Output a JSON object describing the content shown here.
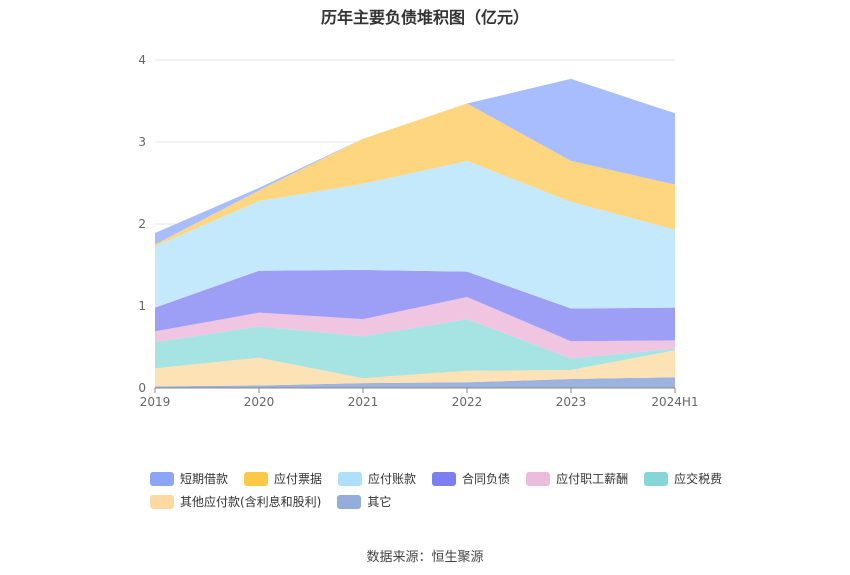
{
  "chart_data": {
    "type": "area",
    "stacked": true,
    "title": "历年主要负债堆积图（亿元）",
    "categories": [
      "2019",
      "2020",
      "2021",
      "2022",
      "2023",
      "2024H1"
    ],
    "ylim": [
      0,
      4
    ],
    "yticks": [
      "0",
      "1",
      "2",
      "3",
      "4"
    ],
    "grid": true,
    "legend_position": "bottom",
    "series": [
      {
        "name": "其它",
        "color": "#9bb3de",
        "values": [
          0.02,
          0.03,
          0.06,
          0.07,
          0.11,
          0.13
        ]
      },
      {
        "name": "其他应付款(含利息和股利)",
        "color": "#fde2b5",
        "values": [
          0.22,
          0.34,
          0.06,
          0.14,
          0.11,
          0.33
        ]
      },
      {
        "name": "应交税费",
        "color": "#a6e3e3",
        "values": [
          0.32,
          0.38,
          0.51,
          0.63,
          0.14,
          0.02
        ]
      },
      {
        "name": "应付职工薪酬",
        "color": "#efc5e1",
        "values": [
          0.13,
          0.17,
          0.21,
          0.27,
          0.21,
          0.1
        ]
      },
      {
        "name": "合同负债",
        "color": "#9d9ff7",
        "values": [
          0.29,
          0.51,
          0.6,
          0.31,
          0.4,
          0.4
        ]
      },
      {
        "name": "应付账款",
        "color": "#c4e9fc",
        "values": [
          0.75,
          0.85,
          1.05,
          1.35,
          1.3,
          0.95
        ]
      },
      {
        "name": "应付票据",
        "color": "#fed680",
        "values": [
          0.02,
          0.13,
          0.55,
          0.7,
          0.5,
          0.55
        ]
      },
      {
        "name": "短期借款",
        "color": "#a8bdfd",
        "values": [
          0.14,
          0.03,
          0.0,
          0.0,
          1.0,
          0.87
        ]
      }
    ],
    "legend": [
      {
        "name": "短期借款",
        "color": "#8ba6f7"
      },
      {
        "name": "应付票据",
        "color": "#fbc945"
      },
      {
        "name": "应付账款",
        "color": "#aee0fb"
      },
      {
        "name": "合同负债",
        "color": "#7d7ef0"
      },
      {
        "name": "应付职工薪酬",
        "color": "#ebbcdc"
      },
      {
        "name": "应交税费",
        "color": "#85d6d6"
      },
      {
        "name": "其他应付款(含利息和股利)",
        "color": "#fdd9a2"
      },
      {
        "name": "其它",
        "color": "#93aedb"
      }
    ]
  },
  "source": "数据来源：恒生聚源"
}
